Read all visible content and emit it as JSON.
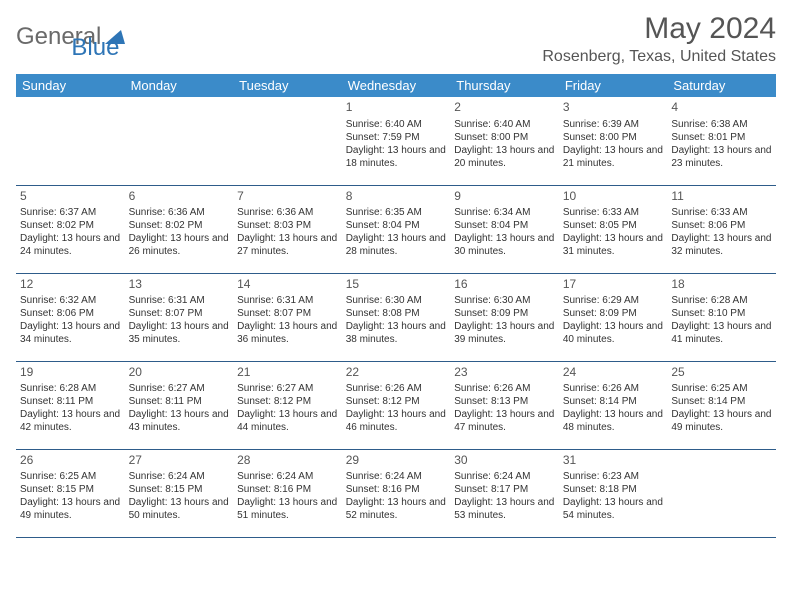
{
  "brand": {
    "part1": "General",
    "part2": "Blue"
  },
  "title": "May 2024",
  "location": "Rosenberg, Texas, United States",
  "colors": {
    "header_bg": "#3b8bc9",
    "header_text": "#ffffff",
    "border": "#2e5c8a",
    "body_text": "#333333",
    "title_text": "#555555",
    "logo_gray": "#6a6a6a",
    "logo_blue": "#2e75b6",
    "background": "#ffffff"
  },
  "day_headers": [
    "Sunday",
    "Monday",
    "Tuesday",
    "Wednesday",
    "Thursday",
    "Friday",
    "Saturday"
  ],
  "cells": [
    null,
    null,
    null,
    {
      "day": "1",
      "sunrise": "6:40 AM",
      "sunset": "7:59 PM",
      "daylight": "13 hours and 18 minutes."
    },
    {
      "day": "2",
      "sunrise": "6:40 AM",
      "sunset": "8:00 PM",
      "daylight": "13 hours and 20 minutes."
    },
    {
      "day": "3",
      "sunrise": "6:39 AM",
      "sunset": "8:00 PM",
      "daylight": "13 hours and 21 minutes."
    },
    {
      "day": "4",
      "sunrise": "6:38 AM",
      "sunset": "8:01 PM",
      "daylight": "13 hours and 23 minutes."
    },
    {
      "day": "5",
      "sunrise": "6:37 AM",
      "sunset": "8:02 PM",
      "daylight": "13 hours and 24 minutes."
    },
    {
      "day": "6",
      "sunrise": "6:36 AM",
      "sunset": "8:02 PM",
      "daylight": "13 hours and 26 minutes."
    },
    {
      "day": "7",
      "sunrise": "6:36 AM",
      "sunset": "8:03 PM",
      "daylight": "13 hours and 27 minutes."
    },
    {
      "day": "8",
      "sunrise": "6:35 AM",
      "sunset": "8:04 PM",
      "daylight": "13 hours and 28 minutes."
    },
    {
      "day": "9",
      "sunrise": "6:34 AM",
      "sunset": "8:04 PM",
      "daylight": "13 hours and 30 minutes."
    },
    {
      "day": "10",
      "sunrise": "6:33 AM",
      "sunset": "8:05 PM",
      "daylight": "13 hours and 31 minutes."
    },
    {
      "day": "11",
      "sunrise": "6:33 AM",
      "sunset": "8:06 PM",
      "daylight": "13 hours and 32 minutes."
    },
    {
      "day": "12",
      "sunrise": "6:32 AM",
      "sunset": "8:06 PM",
      "daylight": "13 hours and 34 minutes."
    },
    {
      "day": "13",
      "sunrise": "6:31 AM",
      "sunset": "8:07 PM",
      "daylight": "13 hours and 35 minutes."
    },
    {
      "day": "14",
      "sunrise": "6:31 AM",
      "sunset": "8:07 PM",
      "daylight": "13 hours and 36 minutes."
    },
    {
      "day": "15",
      "sunrise": "6:30 AM",
      "sunset": "8:08 PM",
      "daylight": "13 hours and 38 minutes."
    },
    {
      "day": "16",
      "sunrise": "6:30 AM",
      "sunset": "8:09 PM",
      "daylight": "13 hours and 39 minutes."
    },
    {
      "day": "17",
      "sunrise": "6:29 AM",
      "sunset": "8:09 PM",
      "daylight": "13 hours and 40 minutes."
    },
    {
      "day": "18",
      "sunrise": "6:28 AM",
      "sunset": "8:10 PM",
      "daylight": "13 hours and 41 minutes."
    },
    {
      "day": "19",
      "sunrise": "6:28 AM",
      "sunset": "8:11 PM",
      "daylight": "13 hours and 42 minutes."
    },
    {
      "day": "20",
      "sunrise": "6:27 AM",
      "sunset": "8:11 PM",
      "daylight": "13 hours and 43 minutes."
    },
    {
      "day": "21",
      "sunrise": "6:27 AM",
      "sunset": "8:12 PM",
      "daylight": "13 hours and 44 minutes."
    },
    {
      "day": "22",
      "sunrise": "6:26 AM",
      "sunset": "8:12 PM",
      "daylight": "13 hours and 46 minutes."
    },
    {
      "day": "23",
      "sunrise": "6:26 AM",
      "sunset": "8:13 PM",
      "daylight": "13 hours and 47 minutes."
    },
    {
      "day": "24",
      "sunrise": "6:26 AM",
      "sunset": "8:14 PM",
      "daylight": "13 hours and 48 minutes."
    },
    {
      "day": "25",
      "sunrise": "6:25 AM",
      "sunset": "8:14 PM",
      "daylight": "13 hours and 49 minutes."
    },
    {
      "day": "26",
      "sunrise": "6:25 AM",
      "sunset": "8:15 PM",
      "daylight": "13 hours and 49 minutes."
    },
    {
      "day": "27",
      "sunrise": "6:24 AM",
      "sunset": "8:15 PM",
      "daylight": "13 hours and 50 minutes."
    },
    {
      "day": "28",
      "sunrise": "6:24 AM",
      "sunset": "8:16 PM",
      "daylight": "13 hours and 51 minutes."
    },
    {
      "day": "29",
      "sunrise": "6:24 AM",
      "sunset": "8:16 PM",
      "daylight": "13 hours and 52 minutes."
    },
    {
      "day": "30",
      "sunrise": "6:24 AM",
      "sunset": "8:17 PM",
      "daylight": "13 hours and 53 minutes."
    },
    {
      "day": "31",
      "sunrise": "6:23 AM",
      "sunset": "8:18 PM",
      "daylight": "13 hours and 54 minutes."
    },
    null
  ],
  "labels": {
    "sunrise": "Sunrise:",
    "sunset": "Sunset:",
    "daylight": "Daylight:"
  }
}
